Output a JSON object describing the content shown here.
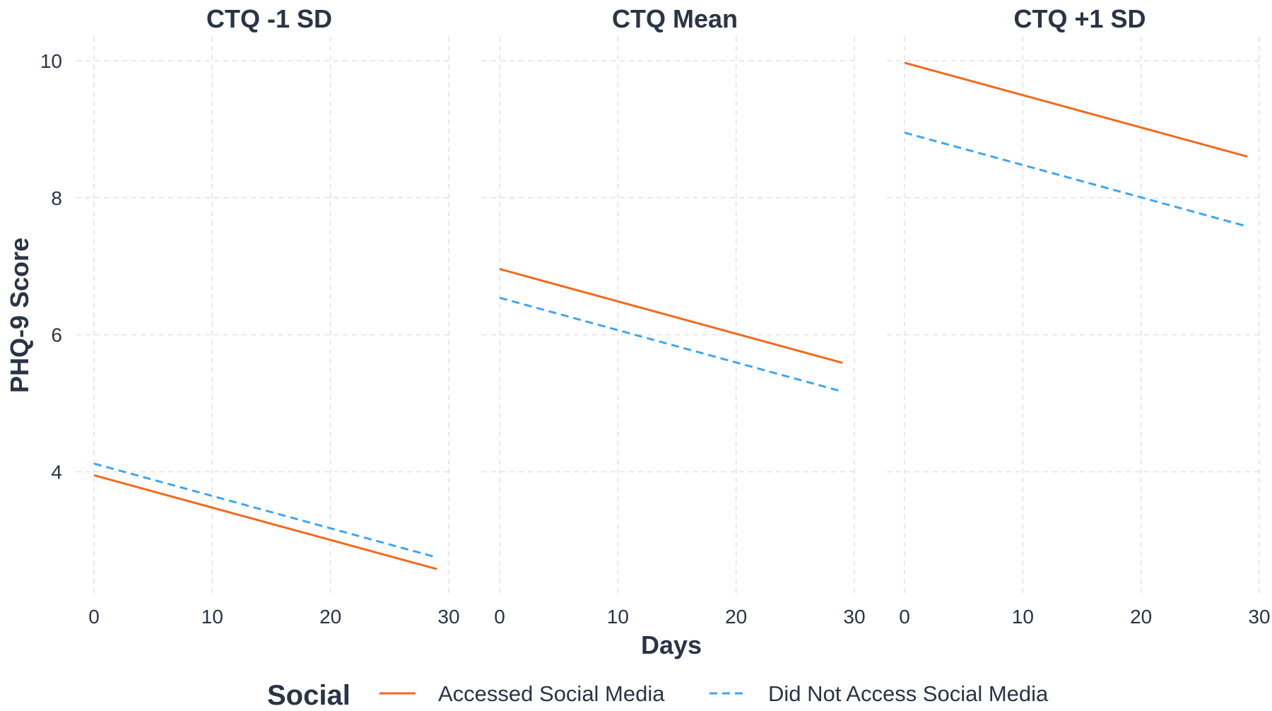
{
  "chart_data": {
    "type": "line",
    "facet_variable": "CTQ",
    "x_label": "Days",
    "y_label": "PHQ-9 Score",
    "xlim": [
      0,
      30
    ],
    "ylim": [
      2.2,
      10.35
    ],
    "x_ticks": [
      0,
      10,
      20,
      30
    ],
    "x_tick_labels": [
      "0",
      "10",
      "20",
      "30"
    ],
    "y_ticks": [
      4,
      6,
      8,
      10
    ],
    "y_tick_labels": [
      "4",
      "6",
      "8",
      "10"
    ],
    "grid": true,
    "legend": {
      "title": "Social",
      "position": "bottom",
      "entries": [
        {
          "name": "Accessed Social Media",
          "color": "#f26a1b",
          "dash": "solid"
        },
        {
          "name": "Did Not Access Social Media",
          "color": "#3fa6ef",
          "dash": "dashed"
        }
      ]
    },
    "panels": [
      {
        "title": "CTQ -1 SD",
        "series": [
          {
            "name": "Accessed Social Media",
            "x": [
              0,
              29
            ],
            "y": [
              3.95,
              2.58
            ]
          },
          {
            "name": "Did Not Access Social Media",
            "x": [
              0,
              29
            ],
            "y": [
              4.12,
              2.75
            ]
          }
        ]
      },
      {
        "title": "CTQ Mean",
        "series": [
          {
            "name": "Accessed Social Media",
            "x": [
              0,
              29
            ],
            "y": [
              6.96,
              5.59
            ]
          },
          {
            "name": "Did Not Access Social Media",
            "x": [
              0,
              29
            ],
            "y": [
              6.54,
              5.17
            ]
          }
        ]
      },
      {
        "title": "CTQ +1 SD",
        "series": [
          {
            "name": "Accessed Social Media",
            "x": [
              0,
              29
            ],
            "y": [
              9.97,
              8.6
            ]
          },
          {
            "name": "Did Not Access Social Media",
            "x": [
              0,
              29
            ],
            "y": [
              8.95,
              7.58
            ]
          }
        ]
      }
    ]
  }
}
